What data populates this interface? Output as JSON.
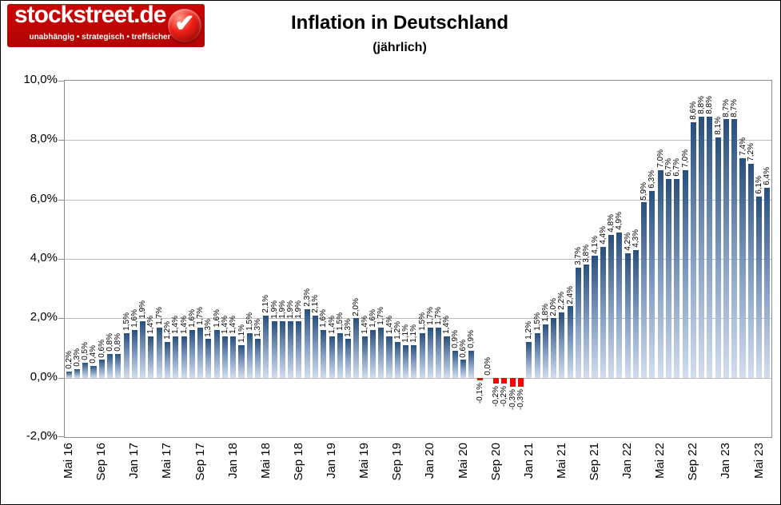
{
  "logo": {
    "brand": "stockstreet.de",
    "tagline": "unabhängig • strategisch • treffsicher",
    "badge_icon": "checkmark-icon",
    "bg_color": "#c00504"
  },
  "title": "Inflation in Deutschland",
  "subtitle": "(jährlich)",
  "chart_data": {
    "type": "bar",
    "title": "Inflation in Deutschland",
    "subtitle": "(jährlich)",
    "unit": "%",
    "ylim": [
      -2,
      10
    ],
    "grid": true,
    "legend": "none",
    "bar_color_top": "#28507e",
    "bar_color_bottom": "#d3deee",
    "negative_bar_color": "#fe0000",
    "ytick_labels": [
      "10,0%",
      "8,0%",
      "6,0%",
      "4,0%",
      "2,0%",
      "0,0%",
      "-2,0%"
    ],
    "xtick_labels": [
      "Mai 16",
      "Sep 16",
      "Jan 17",
      "Mai 17",
      "Sep 17",
      "Jan 18",
      "Mai 18",
      "Sep 18",
      "Jan 19",
      "Mai 19",
      "Sep 19",
      "Jan 20",
      "Mai 20",
      "Sep 20",
      "Jan 21",
      "Mai 21",
      "Sep 21",
      "Jan 22",
      "Mai 22",
      "Sep 22",
      "Jan 23",
      "Mai 23"
    ],
    "xtick_every": 4,
    "categories": [
      "Mai 16",
      "Jun 16",
      "Jul 16",
      "Aug 16",
      "Sep 16",
      "Okt 16",
      "Nov 16",
      "Dez 16",
      "Jan 17",
      "Feb 17",
      "Mär 17",
      "Apr 17",
      "Mai 17",
      "Jun 17",
      "Jul 17",
      "Aug 17",
      "Sep 17",
      "Okt 17",
      "Nov 17",
      "Dez 17",
      "Jan 18",
      "Feb 18",
      "Mär 18",
      "Apr 18",
      "Mai 18",
      "Jun 18",
      "Jul 18",
      "Aug 18",
      "Sep 18",
      "Okt 18",
      "Nov 18",
      "Dez 18",
      "Jan 19",
      "Feb 19",
      "Mär 19",
      "Apr 19",
      "Mai 19",
      "Jun 19",
      "Jul 19",
      "Aug 19",
      "Sep 19",
      "Okt 19",
      "Nov 19",
      "Dez 19",
      "Jan 20",
      "Feb 20",
      "Mär 20",
      "Apr 20",
      "Mai 20",
      "Jun 20",
      "Jul 20",
      "Aug 20",
      "Sep 20",
      "Okt 20",
      "Nov 20",
      "Dez 20",
      "Jan 21",
      "Feb 21",
      "Mär 21",
      "Apr 21",
      "Mai 21",
      "Jun 21",
      "Jul 21",
      "Aug 21",
      "Sep 21",
      "Okt 21",
      "Nov 21",
      "Dez 21",
      "Jan 22",
      "Feb 22",
      "Mär 22",
      "Apr 22",
      "Mai 22",
      "Jun 22",
      "Jul 22",
      "Aug 22",
      "Sep 22",
      "Okt 22",
      "Nov 22",
      "Dez 22",
      "Jan 23",
      "Feb 23",
      "Mär 23",
      "Apr 23",
      "Mai 23",
      "Jun 23"
    ],
    "values": [
      0.2,
      0.3,
      0.5,
      0.4,
      0.6,
      0.8,
      0.8,
      1.5,
      1.6,
      1.9,
      1.4,
      1.7,
      1.2,
      1.4,
      1.4,
      1.6,
      1.7,
      1.3,
      1.6,
      1.4,
      1.4,
      1.1,
      1.5,
      1.3,
      2.1,
      1.9,
      1.9,
      1.9,
      1.9,
      2.3,
      2.1,
      1.6,
      1.4,
      1.5,
      1.3,
      2.0,
      1.4,
      1.6,
      1.7,
      1.4,
      1.2,
      1.1,
      1.1,
      1.5,
      1.7,
      1.7,
      1.4,
      0.9,
      0.6,
      0.9,
      -0.1,
      0.0,
      -0.2,
      -0.2,
      -0.3,
      -0.3,
      1.2,
      1.5,
      1.8,
      2.0,
      2.2,
      2.4,
      3.7,
      3.8,
      4.1,
      4.4,
      4.8,
      4.9,
      4.2,
      4.3,
      5.9,
      6.3,
      7.0,
      6.7,
      6.7,
      7.0,
      8.6,
      8.8,
      8.8,
      8.1,
      8.7,
      8.7,
      7.4,
      7.2,
      6.1,
      6.4
    ],
    "labels": [
      "0,2%",
      "0,3%",
      "0,5%",
      "0,4%",
      "0,6%",
      "0,8%",
      "0,8%",
      "1,5%",
      "1,6%",
      "1,9%",
      "1,4%",
      "1,7%",
      "1,2%",
      "1,4%",
      "1,4%",
      "1,6%",
      "1,7%",
      "1,3%",
      "1,6%",
      "1,4%",
      "1,4%",
      "1,1%",
      "1,5%",
      "1,3%",
      "2,1%",
      "1,9%",
      "1,9%",
      "1,9%",
      "1,9%",
      "2,3%",
      "2,1%",
      "1,6%",
      "1,4%",
      "1,5%",
      "1,3%",
      "2,0%",
      "1,4%",
      "1,6%",
      "1,7%",
      "1,4%",
      "1,2%",
      "1,1%",
      "1,1%",
      "1,5%",
      "1,7%",
      "1,7%",
      "1,4%",
      "0,9%",
      "0,6%",
      "0,9%",
      "-0,1%",
      "0,0%",
      "-0,2%",
      "-0,2%",
      "-0,3%",
      "-0,3%",
      "1,2%",
      "1,5%",
      "1,8%",
      "2,0%",
      "2,2%",
      "2,4%",
      "3,7%",
      "3,8%",
      "4,1%",
      "4,4%",
      "4,8%",
      "4,9%",
      "4,2%",
      "4,3%",
      "5,9%",
      "6,3%",
      "7,0%",
      "6,7%",
      "6,7%",
      "7,0%",
      "8,6%",
      "8,8%",
      "8,8%",
      "8,1%",
      "8,7%",
      "8,7%",
      "7,4%",
      "7,2%",
      "6,1%",
      "6,4%"
    ]
  }
}
